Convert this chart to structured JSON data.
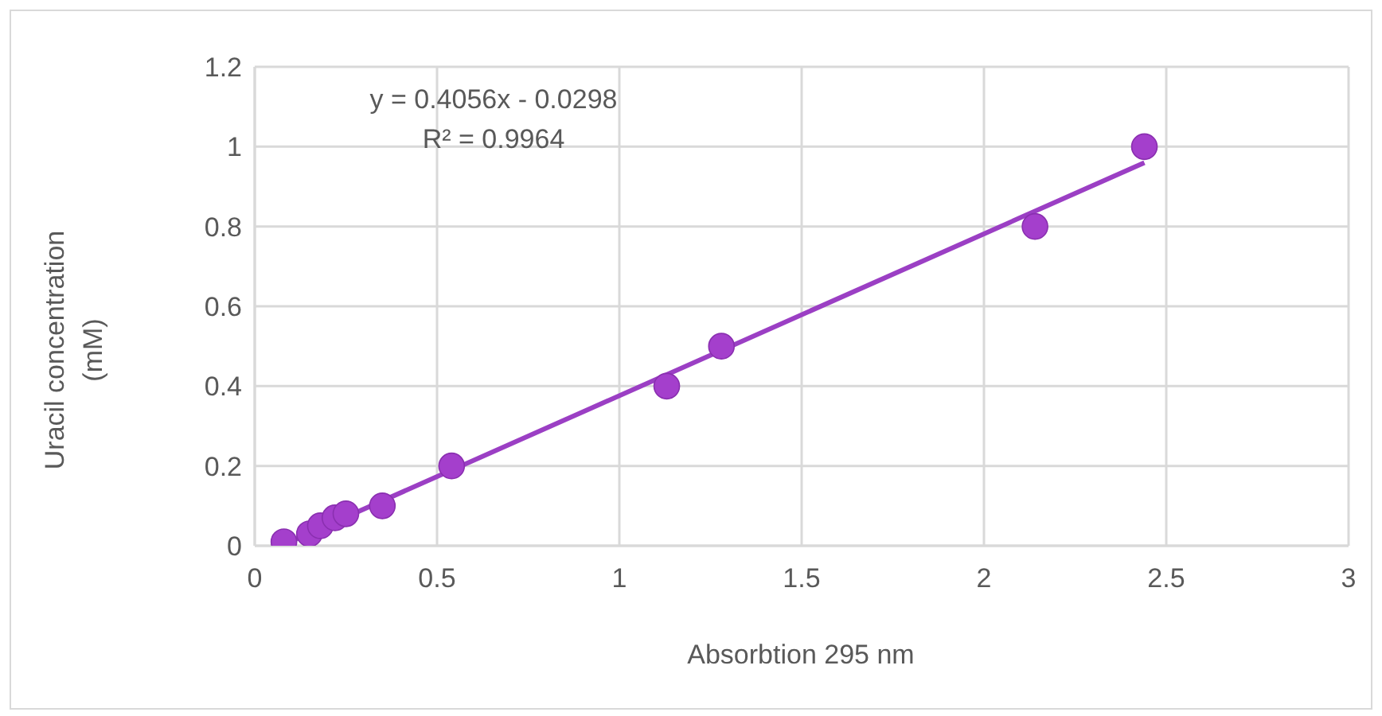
{
  "chart_data": {
    "type": "scatter",
    "xlabel": "Absorbtion 295 nm",
    "ylabel": "Uracil concentration (mM)",
    "x": [
      0.08,
      0.15,
      0.18,
      0.22,
      0.25,
      0.35,
      0.54,
      1.13,
      1.28,
      2.14,
      2.44
    ],
    "series": [
      {
        "color": "#a43fcc",
        "values": [
          0.01,
          0.03,
          0.05,
          0.07,
          0.08,
          0.1,
          0.2,
          0.4,
          0.5,
          0.8,
          1.0
        ],
        "marker": "circle"
      },
      {
        "type": "line",
        "color": "#9b3fc4",
        "x": [
          0.08,
          2.44
        ],
        "values": [
          0.003,
          0.96
        ],
        "marker": "none"
      }
    ],
    "annotations": [
      "y = 0.4056x - 0.0298",
      "R² = 0.9964"
    ],
    "xlim": [
      0,
      3
    ],
    "xticks": [
      0,
      0.5,
      1,
      1.5,
      2,
      2.5,
      3
    ],
    "ylim": [
      0,
      1.2
    ],
    "yticks": [
      0,
      0.2,
      0.4,
      0.6,
      0.8,
      1,
      1.2
    ],
    "grid": true,
    "legend": false
  }
}
